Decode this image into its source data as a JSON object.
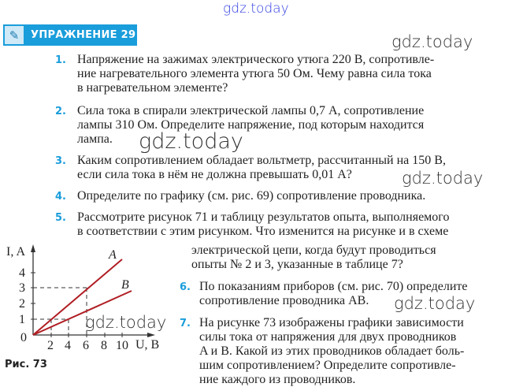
{
  "watermarks": [
    "gdz.today",
    "gdz.today",
    "gdz.today",
    "gdz.today",
    "gdz.today",
    "gdz.today"
  ],
  "header": {
    "icon": "pencil-icon",
    "title": "УПРАЖНЕНИЕ 29"
  },
  "exercises": [
    {
      "num": "1.",
      "lines": [
        "Напряжение на зажимах электрического утюга 220 В, сопротивле-",
        "ние нагревательного элемента утюга 50 Ом. Чему равна сила тока",
        "в нагревательном элементе?"
      ]
    },
    {
      "num": "2.",
      "lines": [
        "Сила тока в спирали электрической лампы 0,7 А, сопротивление",
        "лампы 310 Ом. Определите напряжение, под которым находится",
        "лампа."
      ]
    },
    {
      "num": "3.",
      "lines": [
        "Каким сопротивлением обладает вольтметр, рассчитанный на 150 В,",
        "если сила тока в нём не должна превышать 0,01 А?"
      ]
    },
    {
      "num": "4.",
      "lines": [
        "Определите по графику (см. рис. 69) сопротивление проводника."
      ]
    },
    {
      "num": "5.",
      "lines": [
        "Рассмотрите рисунок 71 и таблицу результатов опыта, выполняемого",
        "в соответствии с этим рисунком. Что изменится на рисунке и в схеме",
        "электрической цепи, когда будут проводиться",
        "опыты № 2 и 3, указанные в таблице 7?"
      ]
    },
    {
      "num": "6.",
      "lines": [
        "По показаниям приборов (см. рис. 70) определите",
        "сопротивление проводника AB."
      ]
    },
    {
      "num": "7.",
      "lines": [
        "На рисунке 73 изображены графики зависимости",
        "силы тока от напряжения для двух проводников",
        "A и B. Какой из этих проводников обладает боль-",
        "шим сопротивлением? Определите сопротивле-",
        "ние каждого из проводников."
      ]
    }
  ],
  "figure": {
    "caption": "Рис. 73",
    "y_label": "I, A",
    "x_label": "U, B",
    "origin": "0",
    "x_ticks": [
      "2",
      "4",
      "6",
      "8",
      "10"
    ],
    "y_ticks": [
      "1",
      "2",
      "3",
      "4"
    ],
    "line_a": "A",
    "line_b": "B",
    "line_color": "#b01e24"
  }
}
